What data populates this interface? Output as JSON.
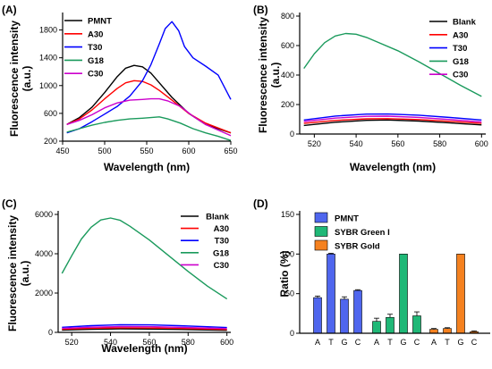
{
  "chart_data": [
    {
      "panel_label": "(A)",
      "type": "line",
      "xlabel": "Wavelength (nm)",
      "ylabel": "Fluorescence intensity (a.u.)",
      "ylabel_lines": [
        "Fluorescence intensity",
        "(a.u.)"
      ],
      "xlim": [
        450,
        650
      ],
      "ylim": [
        200,
        2000
      ],
      "xticks": [
        450,
        500,
        550,
        600,
        650
      ],
      "yticks": [
        200,
        600,
        1000,
        1400,
        1800
      ],
      "ytick_labels": [
        "200",
        "600",
        "1000",
        "1400",
        "1800"
      ],
      "legend_position": "top-left",
      "legend_order": [
        "PMNT",
        "A30",
        "T30",
        "G18",
        "C30"
      ],
      "series": [
        {
          "name": "PMNT",
          "color": "#000000",
          "x": [
            455,
            470,
            485,
            500,
            515,
            525,
            535,
            545,
            555,
            565,
            580,
            600,
            620,
            650
          ],
          "y": [
            440,
            540,
            690,
            900,
            1130,
            1250,
            1290,
            1270,
            1180,
            1040,
            830,
            600,
            440,
            320
          ]
        },
        {
          "name": "A30",
          "color": "#ff0000",
          "x": [
            455,
            470,
            485,
            500,
            515,
            525,
            535,
            545,
            555,
            565,
            580,
            600,
            620,
            650
          ],
          "y": [
            440,
            520,
            650,
            810,
            960,
            1040,
            1070,
            1060,
            1010,
            930,
            790,
            600,
            460,
            320
          ]
        },
        {
          "name": "T30",
          "color": "#0000ff",
          "x": [
            455,
            470,
            485,
            500,
            515,
            530,
            545,
            555,
            565,
            572,
            580,
            588,
            595,
            605,
            620,
            635,
            650
          ],
          "y": [
            320,
            380,
            480,
            590,
            700,
            850,
            1070,
            1300,
            1600,
            1820,
            1920,
            1790,
            1560,
            1400,
            1280,
            1150,
            800
          ]
        },
        {
          "name": "G18",
          "color": "#1a9a5c",
          "x": [
            455,
            470,
            485,
            500,
            515,
            530,
            545,
            555,
            565,
            575,
            590,
            605,
            620,
            635,
            650
          ],
          "y": [
            330,
            380,
            430,
            470,
            500,
            520,
            530,
            540,
            550,
            520,
            460,
            380,
            320,
            270,
            210
          ]
        },
        {
          "name": "C30",
          "color": "#cc00cc",
          "x": [
            455,
            470,
            485,
            500,
            515,
            530,
            545,
            555,
            565,
            575,
            590,
            605,
            620,
            635,
            650
          ],
          "y": [
            440,
            500,
            580,
            680,
            750,
            790,
            800,
            810,
            810,
            780,
            700,
            560,
            440,
            360,
            280
          ]
        }
      ]
    },
    {
      "panel_label": "(B)",
      "type": "line",
      "xlabel": "Wavelength (nm)",
      "ylabel": "Fluorescence intensity (a.u.)",
      "ylabel_lines": [
        "Fluorescence intensity",
        "(a.u.)"
      ],
      "xlim": [
        513,
        602
      ],
      "ylim": [
        0,
        800
      ],
      "xticks": [
        520,
        540,
        560,
        580,
        600
      ],
      "yticks": [
        0,
        200,
        400,
        600,
        800
      ],
      "ytick_labels": [
        "0",
        "200",
        "400",
        "600",
        "800"
      ],
      "legend_position": "top-right",
      "legend_order": [
        "Blank",
        "A30",
        "T30",
        "G18",
        "C30"
      ],
      "series": [
        {
          "name": "Blank",
          "color": "#000000",
          "x": [
            515,
            530,
            545,
            555,
            570,
            585,
            600
          ],
          "y": [
            58,
            80,
            93,
            95,
            88,
            75,
            62
          ]
        },
        {
          "name": "A30",
          "color": "#ff0000",
          "x": [
            515,
            530,
            545,
            555,
            570,
            585,
            600
          ],
          "y": [
            72,
            92,
            103,
            104,
            98,
            86,
            72
          ]
        },
        {
          "name": "T30",
          "color": "#0000ff",
          "x": [
            515,
            530,
            545,
            555,
            570,
            585,
            600
          ],
          "y": [
            95,
            122,
            135,
            136,
            128,
            112,
            95
          ]
        },
        {
          "name": "G18",
          "color": "#1a9a5c",
          "x": [
            515,
            520,
            525,
            530,
            535,
            540,
            545,
            550,
            560,
            570,
            580,
            590,
            600
          ],
          "y": [
            445,
            545,
            620,
            665,
            682,
            677,
            655,
            625,
            565,
            490,
            410,
            330,
            255
          ]
        },
        {
          "name": "C30",
          "color": "#cc00cc",
          "x": [
            515,
            530,
            545,
            555,
            570,
            585,
            600
          ],
          "y": [
            85,
            108,
            120,
            121,
            113,
            98,
            82
          ]
        }
      ]
    },
    {
      "panel_label": "(C)",
      "type": "line",
      "xlabel": "Wavelength (nm)",
      "ylabel": "Fluorescence intensity (a.u.)",
      "ylabel_lines": [
        "Fluorescence intensity",
        "(a.u.)"
      ],
      "xlim": [
        513,
        602
      ],
      "ylim": [
        0,
        6000
      ],
      "xticks": [
        520,
        540,
        560,
        580,
        600
      ],
      "yticks": [
        0,
        2000,
        4000,
        6000
      ],
      "ytick_labels": [
        "0",
        "2000",
        "4000",
        "6000"
      ],
      "legend_position": "top-right",
      "legend_order": [
        "Blank",
        "A30",
        "T30",
        "G18",
        "C30"
      ],
      "series": [
        {
          "name": "Blank",
          "color": "#000000",
          "x": [
            515,
            530,
            545,
            560,
            575,
            590,
            600
          ],
          "y": [
            120,
            160,
            175,
            170,
            150,
            125,
            105
          ]
        },
        {
          "name": "A30",
          "color": "#ff0000",
          "x": [
            515,
            530,
            545,
            560,
            575,
            590,
            600
          ],
          "y": [
            160,
            210,
            230,
            225,
            200,
            170,
            145
          ]
        },
        {
          "name": "T30",
          "color": "#0000ff",
          "x": [
            515,
            530,
            545,
            560,
            575,
            590,
            600
          ],
          "y": [
            260,
            340,
            385,
            380,
            340,
            285,
            245
          ]
        },
        {
          "name": "G18",
          "color": "#1a9a5c",
          "x": [
            515,
            520,
            525,
            530,
            535,
            540,
            545,
            550,
            560,
            570,
            580,
            590,
            600
          ],
          "y": [
            3000,
            3900,
            4750,
            5350,
            5720,
            5820,
            5700,
            5400,
            4700,
            3900,
            3100,
            2350,
            1700
          ]
        },
        {
          "name": "C30",
          "color": "#cc00cc",
          "x": [
            515,
            530,
            545,
            560,
            575,
            590,
            600
          ],
          "y": [
            200,
            265,
            295,
            290,
            260,
            220,
            190
          ]
        }
      ]
    },
    {
      "panel_label": "(D)",
      "type": "bar",
      "ylabel": "Ratio (%)",
      "ylim": [
        0,
        150
      ],
      "yticks": [
        0,
        50,
        100,
        150
      ],
      "ytick_labels": [
        "0",
        "50",
        "100",
        "150"
      ],
      "legend_position": "top-left",
      "categories": [
        "A",
        "T",
        "G",
        "C"
      ],
      "series": [
        {
          "name": "PMNT",
          "color": "#4f66ee",
          "values": [
            45,
            100,
            43,
            54
          ],
          "errors": [
            2,
            1,
            3,
            1
          ]
        },
        {
          "name": "SYBR Green I",
          "color": "#1fb877",
          "values": [
            15,
            20,
            100,
            22
          ],
          "errors": [
            4,
            4,
            0,
            5
          ]
        },
        {
          "name": "SYBR Gold",
          "color": "#f5811f",
          "values": [
            5,
            6,
            100,
            2
          ],
          "errors": [
            1,
            1,
            0,
            1
          ]
        }
      ]
    }
  ]
}
